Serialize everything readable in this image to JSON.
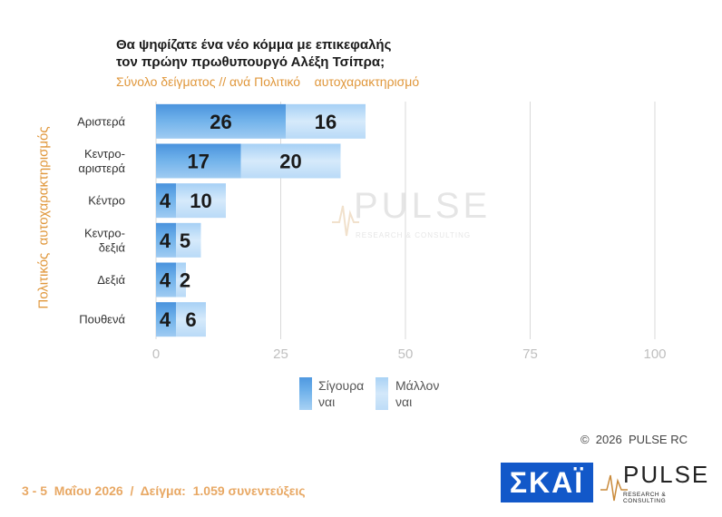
{
  "header": {
    "title_line1": "Θα ψηφίζατε ένα νέο κόμμα με επικεφαλής",
    "title_line2": "τον πρώην πρωθυπουργό Αλέξη Τσίπρα;",
    "subtitle": "Σύνολο δείγματος // ανά Πολιτικό    αυτοχαρακτηρισμό"
  },
  "chart_data": {
    "type": "bar",
    "orientation": "horizontal",
    "stacked": true,
    "ylabel": "Πολιτικός  αυτοχαρακτηρισμός",
    "xlim": [
      0,
      100
    ],
    "x_ticks": [
      "0",
      "25",
      "50",
      "75",
      "100"
    ],
    "grid": true,
    "categories": [
      [
        "Αριστερά"
      ],
      [
        "Κεντρο-",
        "αριστερά"
      ],
      [
        "Κέντρο"
      ],
      [
        "Κεντρο-",
        "δεξιά"
      ],
      [
        "Δεξιά"
      ],
      [
        "Πουθενά"
      ]
    ],
    "series": [
      {
        "name": "Σίγουρα ναι",
        "values": [
          26,
          17,
          4,
          4,
          4,
          4
        ],
        "color": "#5aa3e6"
      },
      {
        "name": "Μάλλον ναι",
        "values": [
          16,
          20,
          10,
          5,
          2,
          6
        ],
        "color": "#bcdcf7"
      }
    ],
    "legend_position": "bottom"
  },
  "legend": {
    "sure_line1": "Σίγουρα",
    "sure_line2": "ναι",
    "maybe_line1": "Μάλλον",
    "maybe_line2": "ναι"
  },
  "watermark": {
    "word": "PULSE",
    "sub": "RESEARCH & CONSULTING"
  },
  "copyright": "©  2026  PULSE RC",
  "footer": "3 - 5  Μαΐου 2026  /  Δείγμα:  1.059 συνεντεύξεις",
  "logos": {
    "skai": "ΣΚΑΪ",
    "pulse_word": "PULSE",
    "pulse_sub": "RESEARCH & CONSULTING"
  }
}
